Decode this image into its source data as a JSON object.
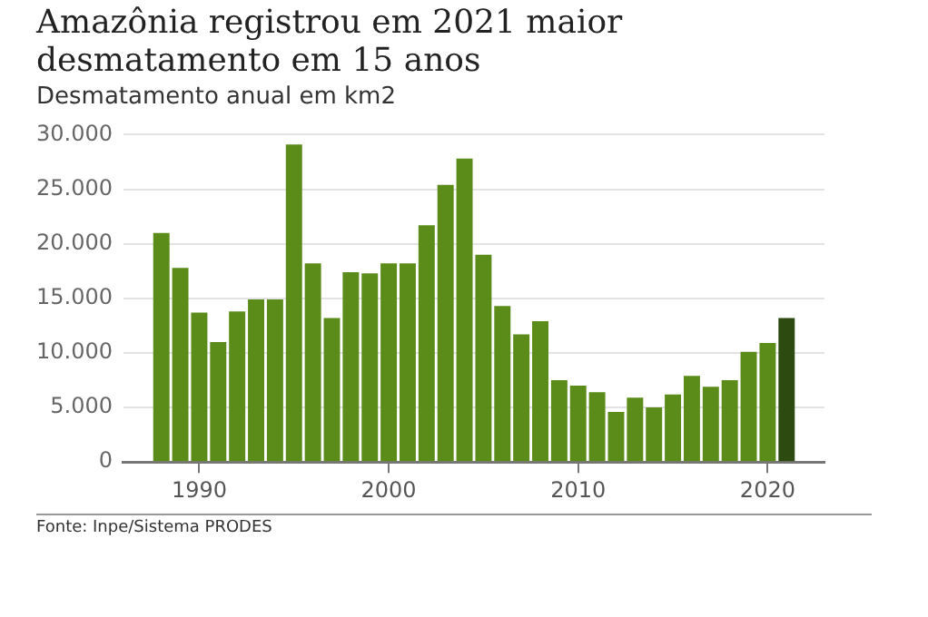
{
  "chart_data": {
    "type": "bar",
    "title": "Amazônia registrou em 2021 maior desmatamento em 15 anos",
    "subtitle": "Desmatamento anual em km2",
    "x": [
      1988,
      1989,
      1990,
      1991,
      1992,
      1993,
      1994,
      1995,
      1996,
      1997,
      1998,
      1999,
      2000,
      2001,
      2002,
      2003,
      2004,
      2005,
      2006,
      2007,
      2008,
      2009,
      2010,
      2011,
      2012,
      2013,
      2014,
      2015,
      2016,
      2017,
      2018,
      2019,
      2020,
      2021
    ],
    "values": [
      21000,
      17800,
      13700,
      11000,
      13800,
      14900,
      14900,
      29100,
      18200,
      13200,
      17400,
      17300,
      18200,
      18200,
      21700,
      25400,
      27800,
      19000,
      14300,
      11700,
      12900,
      7500,
      7000,
      6400,
      4600,
      5900,
      5000,
      6200,
      7900,
      6900,
      7500,
      10100,
      10900,
      13200
    ],
    "colors": [
      "#5b8c1a",
      "#5b8c1a",
      "#5b8c1a",
      "#5b8c1a",
      "#5b8c1a",
      "#5b8c1a",
      "#5b8c1a",
      "#5b8c1a",
      "#5b8c1a",
      "#5b8c1a",
      "#5b8c1a",
      "#5b8c1a",
      "#5b8c1a",
      "#5b8c1a",
      "#5b8c1a",
      "#5b8c1a",
      "#5b8c1a",
      "#5b8c1a",
      "#5b8c1a",
      "#5b8c1a",
      "#5b8c1a",
      "#5b8c1a",
      "#5b8c1a",
      "#5b8c1a",
      "#5b8c1a",
      "#5b8c1a",
      "#5b8c1a",
      "#5b8c1a",
      "#5b8c1a",
      "#5b8c1a",
      "#5b8c1a",
      "#5b8c1a",
      "#5b8c1a",
      "#2d4a10"
    ],
    "xlim": [
      1986,
      2023
    ],
    "xticks": [
      1990,
      2000,
      2010,
      2020
    ],
    "ylim": [
      0,
      30000
    ],
    "yticks": [
      {
        "value": 0,
        "label": "0"
      },
      {
        "value": 5000,
        "label": "5.000"
      },
      {
        "value": 10000,
        "label": "10.000"
      },
      {
        "value": 15000,
        "label": "15.000"
      },
      {
        "value": 20000,
        "label": "20.000"
      },
      {
        "value": 25000,
        "label": "25.000"
      },
      {
        "value": 30000,
        "label": "30.000"
      }
    ],
    "grid": "y",
    "legend": false,
    "annotations": [
      "Fonte: Inpe/Sistema PRODES"
    ]
  }
}
